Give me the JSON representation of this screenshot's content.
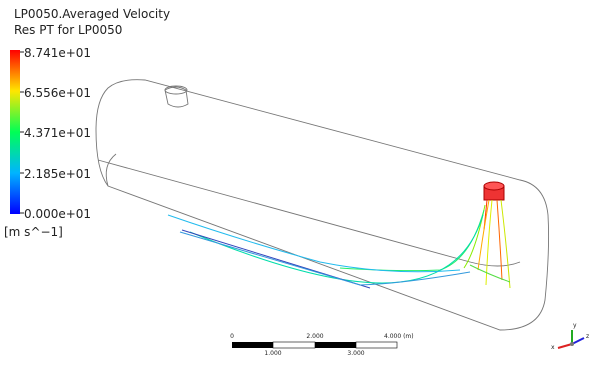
{
  "legend": {
    "title": "LP0050.Averaged Velocity",
    "subtitle": "Res PT for LP0050",
    "labels": [
      "8.741e+01",
      "6.556e+01",
      "4.371e+01",
      "2.185e+01",
      "0.000e+01"
    ],
    "units": "[m s^−1]"
  },
  "scale_bar": {
    "top_labels": [
      "0",
      "2.000",
      "4.000 (m)"
    ],
    "bottom_labels": [
      "1.000",
      "3.000"
    ]
  },
  "axes_triad": {
    "x": "x",
    "y": "y",
    "z": "z"
  }
}
